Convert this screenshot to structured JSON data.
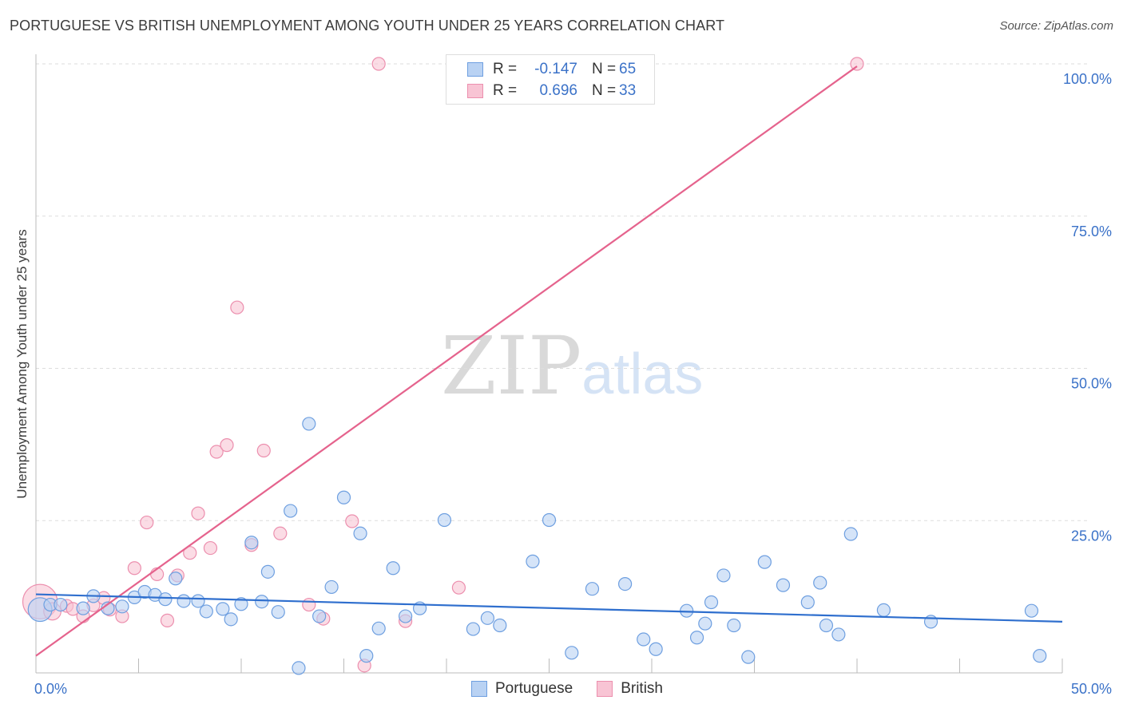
{
  "title": "PORTUGUESE VS BRITISH UNEMPLOYMENT AMONG YOUTH UNDER 25 YEARS CORRELATION CHART",
  "source": "Source: ZipAtlas.com",
  "watermark": {
    "zip": "ZIP",
    "atlas": "atlas"
  },
  "legend": {
    "r_label": "R =",
    "n_label": "N =",
    "rows": [
      {
        "name": "Portuguese",
        "r": "-0.147",
        "n": "65"
      },
      {
        "name": "British",
        "r": "0.696",
        "n": "33"
      }
    ]
  },
  "chart_data": {
    "type": "scatter",
    "title": "PORTUGUESE VS BRITISH UNEMPLOYMENT AMONG YOUTH UNDER 25 YEARS CORRELATION CHART",
    "xlabel": "",
    "ylabel": "Unemployment Among Youth under 25 years",
    "xlim": [
      0,
      50
    ],
    "ylim": [
      0,
      100
    ],
    "x_tick_labels": [
      "0.0%",
      "50.0%"
    ],
    "y_tick_labels": [
      "100.0%",
      "75.0%",
      "50.0%",
      "25.0%"
    ],
    "y_ticks": [
      100,
      75,
      50,
      25
    ],
    "grid": true,
    "colors": {
      "portuguese_fill": "#b9d2f3",
      "portuguese_stroke": "#6e9fe0",
      "portuguese_line": "#2f6fce",
      "british_fill": "#f8c4d4",
      "british_stroke": "#ec8fae",
      "british_line": "#e5638d",
      "grid": "#dddddd",
      "tick": "#3b72c8"
    },
    "series": [
      {
        "name": "Portuguese",
        "trend": {
          "x": [
            0,
            50
          ],
          "y": [
            12.9,
            8.4
          ]
        },
        "points": [
          [
            0.2,
            10.4,
            11
          ],
          [
            0.7,
            11.2,
            6
          ],
          [
            1.2,
            11.2,
            6
          ],
          [
            2.3,
            10.6,
            6
          ],
          [
            2.8,
            12.6,
            6
          ],
          [
            3.5,
            10.6,
            6
          ],
          [
            4.2,
            10.9,
            6
          ],
          [
            4.8,
            12.4,
            6
          ],
          [
            5.3,
            13.3,
            6
          ],
          [
            5.8,
            12.8,
            6
          ],
          [
            6.3,
            12.1,
            6
          ],
          [
            6.8,
            15.5,
            6
          ],
          [
            7.2,
            11.8,
            6
          ],
          [
            7.9,
            11.8,
            6
          ],
          [
            8.3,
            10.1,
            6
          ],
          [
            9.1,
            10.5,
            6
          ],
          [
            9.5,
            8.8,
            6
          ],
          [
            10.0,
            11.3,
            6
          ],
          [
            10.5,
            21.4,
            6
          ],
          [
            11.0,
            11.7,
            6
          ],
          [
            11.3,
            16.6,
            6
          ],
          [
            11.8,
            10.0,
            6
          ],
          [
            12.4,
            26.6,
            6
          ],
          [
            12.8,
            0.8,
            6
          ],
          [
            13.3,
            40.9,
            6
          ],
          [
            13.8,
            9.3,
            6
          ],
          [
            14.4,
            14.1,
            6
          ],
          [
            15.0,
            28.8,
            6
          ],
          [
            15.8,
            22.9,
            6
          ],
          [
            16.1,
            2.8,
            6
          ],
          [
            16.7,
            7.3,
            6
          ],
          [
            17.4,
            17.2,
            6
          ],
          [
            18.0,
            9.3,
            6
          ],
          [
            18.7,
            10.6,
            6
          ],
          [
            19.9,
            25.1,
            6
          ],
          [
            21.3,
            7.2,
            6
          ],
          [
            22.0,
            9.0,
            6
          ],
          [
            22.6,
            7.8,
            6
          ],
          [
            24.2,
            18.3,
            6
          ],
          [
            25.0,
            25.1,
            6
          ],
          [
            26.1,
            3.3,
            6
          ],
          [
            27.1,
            13.8,
            6
          ],
          [
            28.7,
            14.6,
            6
          ],
          [
            29.6,
            5.5,
            6
          ],
          [
            30.2,
            3.9,
            6
          ],
          [
            31.7,
            10.2,
            6
          ],
          [
            32.2,
            5.8,
            6
          ],
          [
            32.6,
            8.1,
            6
          ],
          [
            32.9,
            11.6,
            6
          ],
          [
            33.5,
            16.0,
            6
          ],
          [
            34.0,
            7.8,
            6
          ],
          [
            34.7,
            2.6,
            6
          ],
          [
            35.5,
            18.2,
            6
          ],
          [
            36.4,
            14.4,
            6
          ],
          [
            37.6,
            11.6,
            6
          ],
          [
            38.2,
            14.8,
            6
          ],
          [
            38.5,
            7.8,
            6
          ],
          [
            39.1,
            6.3,
            6
          ],
          [
            39.7,
            22.8,
            6
          ],
          [
            41.3,
            10.3,
            6
          ],
          [
            43.6,
            8.4,
            6
          ],
          [
            48.5,
            10.2,
            6
          ],
          [
            48.9,
            2.8,
            6
          ]
        ]
      },
      {
        "name": "British",
        "trend": {
          "x": [
            0,
            40
          ],
          "y": [
            2.8,
            99.6
          ]
        },
        "points": [
          [
            0.2,
            11.7,
            16
          ],
          [
            0.8,
            10.1,
            8
          ],
          [
            1.5,
            11.0,
            6
          ],
          [
            1.8,
            10.5,
            6
          ],
          [
            2.3,
            9.3,
            6
          ],
          [
            2.8,
            11.1,
            6
          ],
          [
            3.3,
            12.3,
            6
          ],
          [
            3.6,
            10.4,
            6
          ],
          [
            4.2,
            9.3,
            6
          ],
          [
            4.8,
            17.2,
            6
          ],
          [
            5.4,
            24.7,
            6
          ],
          [
            5.9,
            16.2,
            6
          ],
          [
            6.4,
            8.6,
            6
          ],
          [
            6.9,
            16.0,
            6
          ],
          [
            7.5,
            19.7,
            6
          ],
          [
            7.9,
            26.2,
            6
          ],
          [
            8.5,
            20.5,
            6
          ],
          [
            8.8,
            36.3,
            6
          ],
          [
            9.3,
            37.4,
            6
          ],
          [
            9.8,
            60.0,
            6
          ],
          [
            10.5,
            21.0,
            6
          ],
          [
            11.1,
            36.5,
            6
          ],
          [
            11.9,
            22.9,
            6
          ],
          [
            13.3,
            11.2,
            6
          ],
          [
            14.0,
            8.9,
            6
          ],
          [
            15.4,
            24.9,
            6
          ],
          [
            16.0,
            1.2,
            6
          ],
          [
            16.7,
            100.0,
            6
          ],
          [
            18.0,
            8.5,
            6
          ],
          [
            20.6,
            14.0,
            6
          ],
          [
            40.0,
            100.0,
            6
          ]
        ]
      }
    ]
  }
}
